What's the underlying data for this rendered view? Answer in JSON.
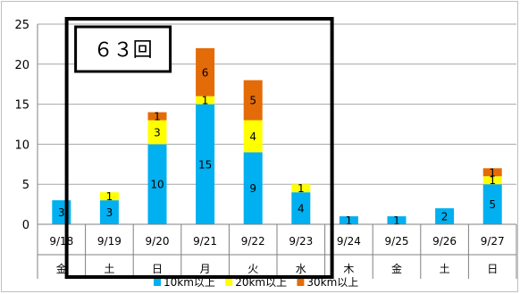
{
  "chart_data": {
    "type": "bar",
    "stacked": true,
    "categories": [
      "9/18",
      "9/19",
      "9/20",
      "9/21",
      "9/22",
      "9/23",
      "9/24",
      "9/25",
      "9/26",
      "9/27"
    ],
    "weekdays": [
      "金",
      "土",
      "日",
      "月",
      "火",
      "水",
      "木",
      "金",
      "土",
      "日"
    ],
    "series": [
      {
        "name": "10km以上",
        "color": "#00B0F0",
        "values": [
          3,
          3,
          10,
          15,
          9,
          4,
          1,
          1,
          2,
          5
        ]
      },
      {
        "name": "20km以上",
        "color": "#FFFF00",
        "values": [
          0,
          1,
          3,
          1,
          4,
          1,
          0,
          0,
          0,
          1
        ]
      },
      {
        "name": "30km以上",
        "color": "#E36C09",
        "values": [
          0,
          0,
          1,
          6,
          5,
          0,
          0,
          0,
          0,
          1
        ]
      }
    ],
    "ylim": [
      0,
      25
    ],
    "yticks": [
      0,
      5,
      10,
      15,
      20,
      25
    ],
    "grid": true,
    "legend": "bottom",
    "annotation": {
      "text": "６３回"
    }
  }
}
